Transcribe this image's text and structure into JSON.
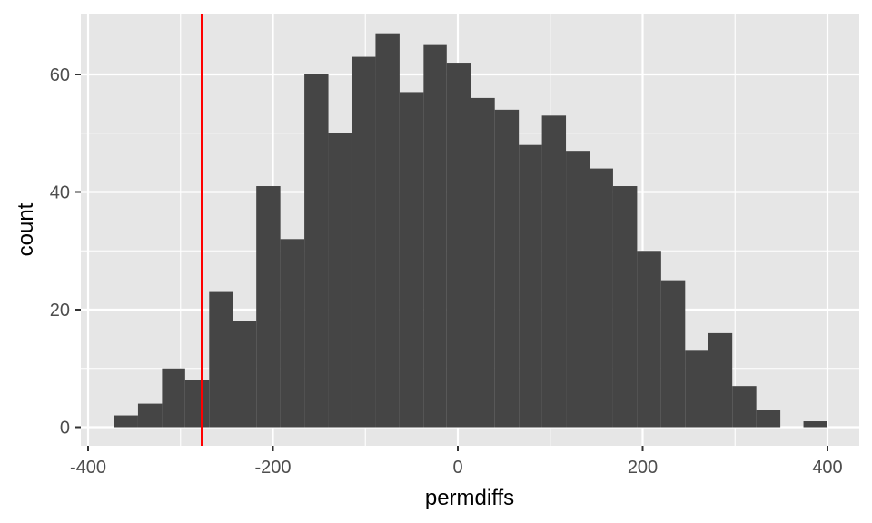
{
  "chart_data": {
    "type": "histogram",
    "xlabel": "permdiffs",
    "ylabel": "count",
    "xlim": [
      -400,
      400
    ],
    "ylim": [
      0,
      67
    ],
    "x_ticks": [
      -400,
      -200,
      0,
      200,
      400
    ],
    "x_tick_labels": [
      "-400",
      "-200",
      "0",
      "200",
      "400"
    ],
    "y_ticks": [
      0,
      20,
      40,
      60
    ],
    "y_tick_labels": [
      "0",
      "20",
      "40",
      "60"
    ],
    "grid": true,
    "bins": [
      {
        "x0": -372,
        "x1": -346,
        "count": 2
      },
      {
        "x0": -346,
        "x1": -320,
        "count": 4
      },
      {
        "x0": -320,
        "x1": -295,
        "count": 10
      },
      {
        "x0": -295,
        "x1": -269,
        "count": 8
      },
      {
        "x0": -269,
        "x1": -243,
        "count": 23
      },
      {
        "x0": -243,
        "x1": -218,
        "count": 18
      },
      {
        "x0": -218,
        "x1": -192,
        "count": 41
      },
      {
        "x0": -192,
        "x1": -166,
        "count": 32
      },
      {
        "x0": -166,
        "x1": -140,
        "count": 60
      },
      {
        "x0": -140,
        "x1": -115,
        "count": 50
      },
      {
        "x0": -115,
        "x1": -89,
        "count": 63
      },
      {
        "x0": -89,
        "x1": -63,
        "count": 67
      },
      {
        "x0": -63,
        "x1": -37,
        "count": 57
      },
      {
        "x0": -37,
        "x1": -12,
        "count": 65
      },
      {
        "x0": -12,
        "x1": 14,
        "count": 62
      },
      {
        "x0": 14,
        "x1": 40,
        "count": 56
      },
      {
        "x0": 40,
        "x1": 66,
        "count": 54
      },
      {
        "x0": 66,
        "x1": 91,
        "count": 48
      },
      {
        "x0": 91,
        "x1": 117,
        "count": 53
      },
      {
        "x0": 117,
        "x1": 143,
        "count": 47
      },
      {
        "x0": 143,
        "x1": 168,
        "count": 44
      },
      {
        "x0": 168,
        "x1": 194,
        "count": 41
      },
      {
        "x0": 194,
        "x1": 220,
        "count": 30
      },
      {
        "x0": 220,
        "x1": 246,
        "count": 25
      },
      {
        "x0": 246,
        "x1": 271,
        "count": 13
      },
      {
        "x0": 271,
        "x1": 297,
        "count": 16
      },
      {
        "x0": 297,
        "x1": 323,
        "count": 7
      },
      {
        "x0": 323,
        "x1": 349,
        "count": 3
      },
      {
        "x0": 349,
        "x1": 374,
        "count": 0
      },
      {
        "x0": 374,
        "x1": 400,
        "count": 1
      }
    ],
    "reference_line": {
      "x": -277,
      "color": "#ff0000"
    },
    "colors": {
      "bar_fill": "#454545",
      "panel_background": "#e6e6e6",
      "grid_major": "#ffffff",
      "reference_line": "#ff0000"
    }
  }
}
